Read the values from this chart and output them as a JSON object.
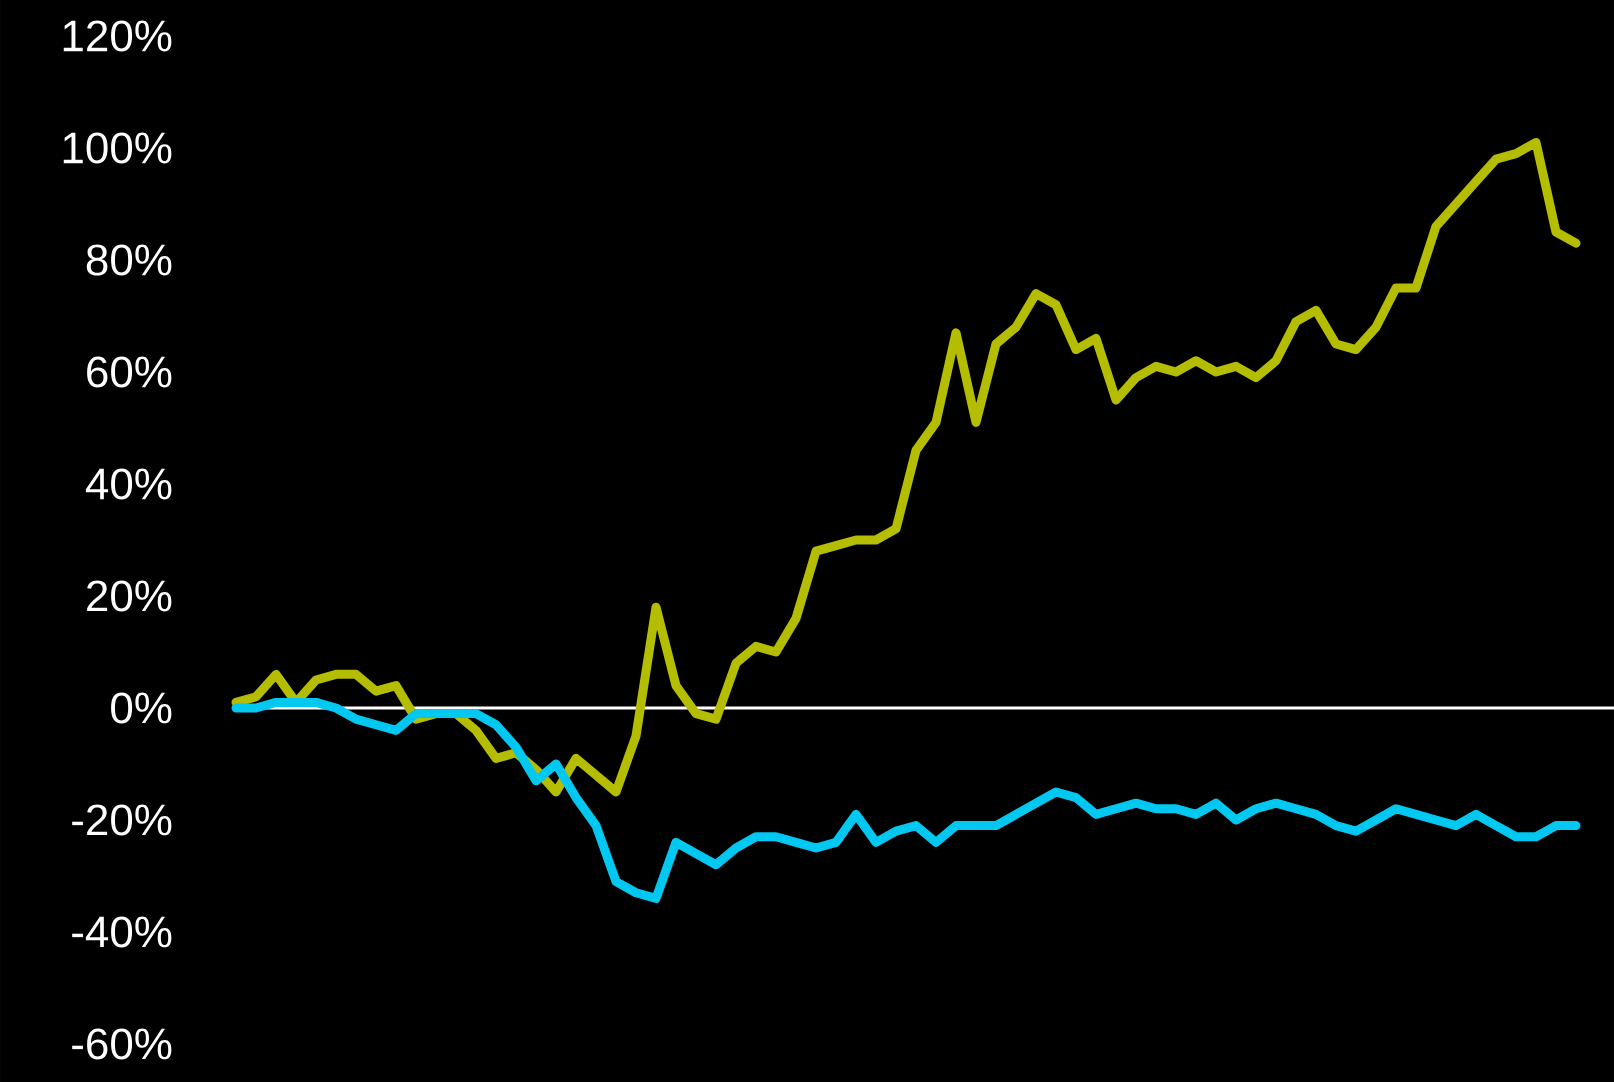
{
  "chart_data": {
    "type": "line",
    "categories": [
      null,
      null,
      null,
      null,
      null,
      null,
      null,
      null,
      null,
      null,
      null,
      null,
      null,
      null,
      null,
      null,
      null,
      null,
      null,
      null,
      null,
      null,
      null,
      null,
      null,
      null,
      null,
      null,
      null,
      null,
      null,
      null,
      null,
      null,
      null,
      null,
      null,
      null,
      null,
      null,
      null,
      null,
      null,
      null,
      null,
      null,
      null,
      null,
      null,
      null,
      null,
      null,
      null,
      null,
      null,
      null,
      null,
      null,
      null,
      null,
      null,
      null,
      null,
      null,
      null,
      null,
      null,
      null
    ],
    "series": [
      {
        "color": "#b5bd00",
        "values": [
          1,
          2,
          6,
          1,
          5,
          6,
          6,
          3,
          4,
          -2,
          -1,
          -1,
          -4,
          -9,
          -8,
          -11,
          -15,
          -9,
          -12,
          -15,
          -5,
          18,
          4,
          -1,
          -2,
          8,
          11,
          10,
          16,
          28,
          29,
          30,
          30,
          32,
          46,
          51,
          67,
          51,
          65,
          68,
          74,
          72,
          64,
          66,
          55,
          59,
          61,
          60,
          62,
          60,
          61,
          59,
          62,
          69,
          71,
          65,
          64,
          68,
          75,
          75,
          86,
          90,
          94,
          98,
          99,
          101,
          85,
          83
        ]
      },
      {
        "color": "#00c8f0",
        "values": [
          0,
          0,
          1,
          1,
          1,
          0,
          -2,
          -3,
          -4,
          -1,
          -1,
          -1,
          -1,
          -3,
          -7,
          -13,
          -10,
          -16,
          -21,
          -31,
          -33,
          -34,
          -24,
          -26,
          -28,
          -25,
          -23,
          -23,
          -24,
          -25,
          -24,
          -19,
          -24,
          -22,
          -21,
          -24,
          -21,
          -21,
          -21,
          -19,
          -17,
          -15,
          -16,
          -19,
          -18,
          -17,
          -18,
          -18,
          -19,
          -17,
          -20,
          -18,
          -17,
          -18,
          -19,
          -21,
          -22,
          -20,
          -18,
          -19,
          -20,
          -21,
          -19,
          -21,
          -23,
          -23,
          -21,
          -21
        ]
      }
    ],
    "ylim": [
      -60,
      120
    ],
    "yticks": [
      {
        "value": -60,
        "label": "-60%"
      },
      {
        "value": -40,
        "label": "-40%"
      },
      {
        "value": -20,
        "label": "-20%"
      },
      {
        "value": 0,
        "label": "0%"
      },
      {
        "value": 20,
        "label": "20%"
      },
      {
        "value": 40,
        "label": "40%"
      },
      {
        "value": 60,
        "label": "60%"
      },
      {
        "value": 80,
        "label": "80%"
      },
      {
        "value": 100,
        "label": "100%"
      },
      {
        "value": 120,
        "label": "120%"
      }
    ],
    "tick_labels": "y"
  }
}
